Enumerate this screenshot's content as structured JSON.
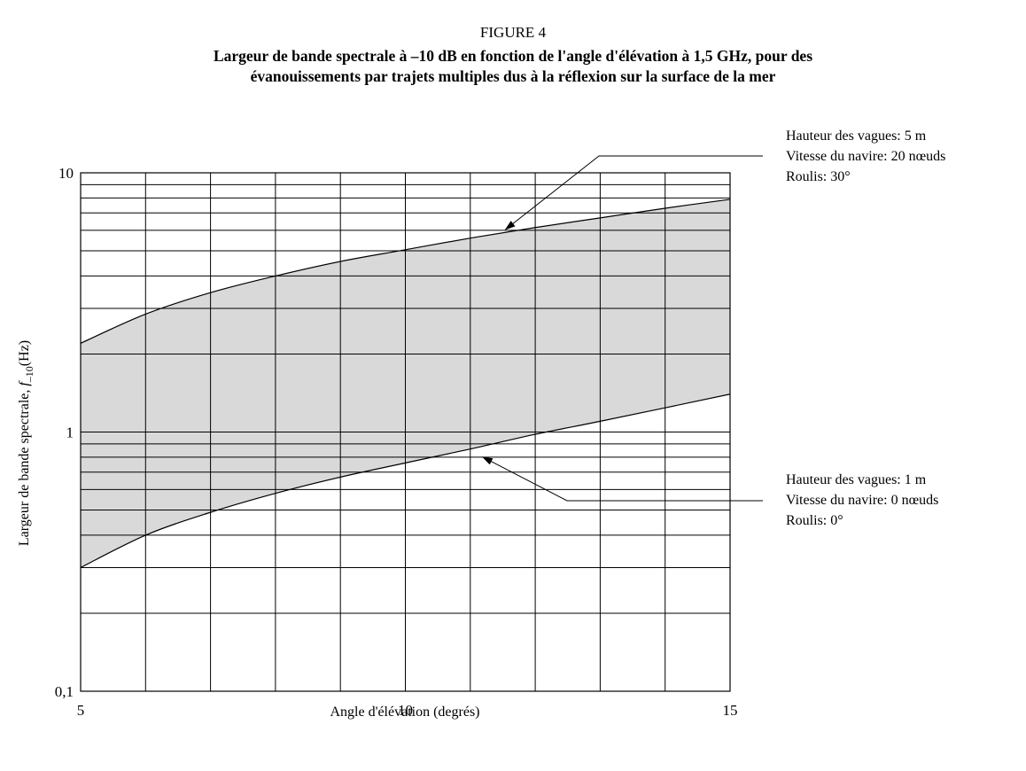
{
  "figure": {
    "label": "FIGURE 4",
    "title_line1": "Largeur de bande spectrale à –10 dB en fonction de l'angle d'élévation à 1,5 GHz, pour des",
    "title_line2": "évanouissements par trajets multiples dus à la réflexion sur la surface de la mer"
  },
  "chart_data": {
    "type": "area",
    "xlabel": "Angle d'élévation (degrés)",
    "ylabel_main": "Largeur de bande spectrale, ",
    "ylabel_symbol": "f",
    "ylabel_subscript": "–10",
    "ylabel_unit": "(Hz)",
    "xlim": [
      5,
      15
    ],
    "ylim": [
      0.1,
      10
    ],
    "yscale": "log",
    "grid": true,
    "x_ticks": [
      {
        "value": 5,
        "label": "5"
      },
      {
        "value": 10,
        "label": "10"
      },
      {
        "value": 15,
        "label": "15"
      }
    ],
    "y_ticks": [
      {
        "value": 0.1,
        "label": "0,1"
      },
      {
        "value": 1,
        "label": "1"
      },
      {
        "value": 10,
        "label": "10"
      }
    ],
    "fill_color": "#d9d9d9",
    "series": [
      {
        "x": [
          5,
          6,
          7,
          8,
          9,
          10,
          11,
          12,
          13,
          14,
          15
        ],
        "values": [
          2.2,
          2.85,
          3.45,
          4.0,
          4.55,
          5.05,
          5.6,
          6.15,
          6.7,
          7.3,
          7.9
        ]
      },
      {
        "x": [
          5,
          6,
          7,
          8,
          9,
          10,
          11,
          12,
          13,
          14,
          15
        ],
        "values": [
          0.3,
          0.4,
          0.49,
          0.58,
          0.67,
          0.76,
          0.86,
          0.98,
          1.1,
          1.24,
          1.4
        ]
      }
    ],
    "annotations": [
      {
        "lines": [
          "Hauteur des vagues: 5 m",
          "Vitesse du navire: 20 nœuds",
          "Roulis: 30°"
        ],
        "target_x": 11.5,
        "target_y": 5.9
      },
      {
        "lines": [
          "Hauteur des vagues: 1 m",
          "Vitesse du navire: 0 nœuds",
          "Roulis: 0°"
        ],
        "target_x": 11.15,
        "target_y": 0.82
      }
    ]
  }
}
